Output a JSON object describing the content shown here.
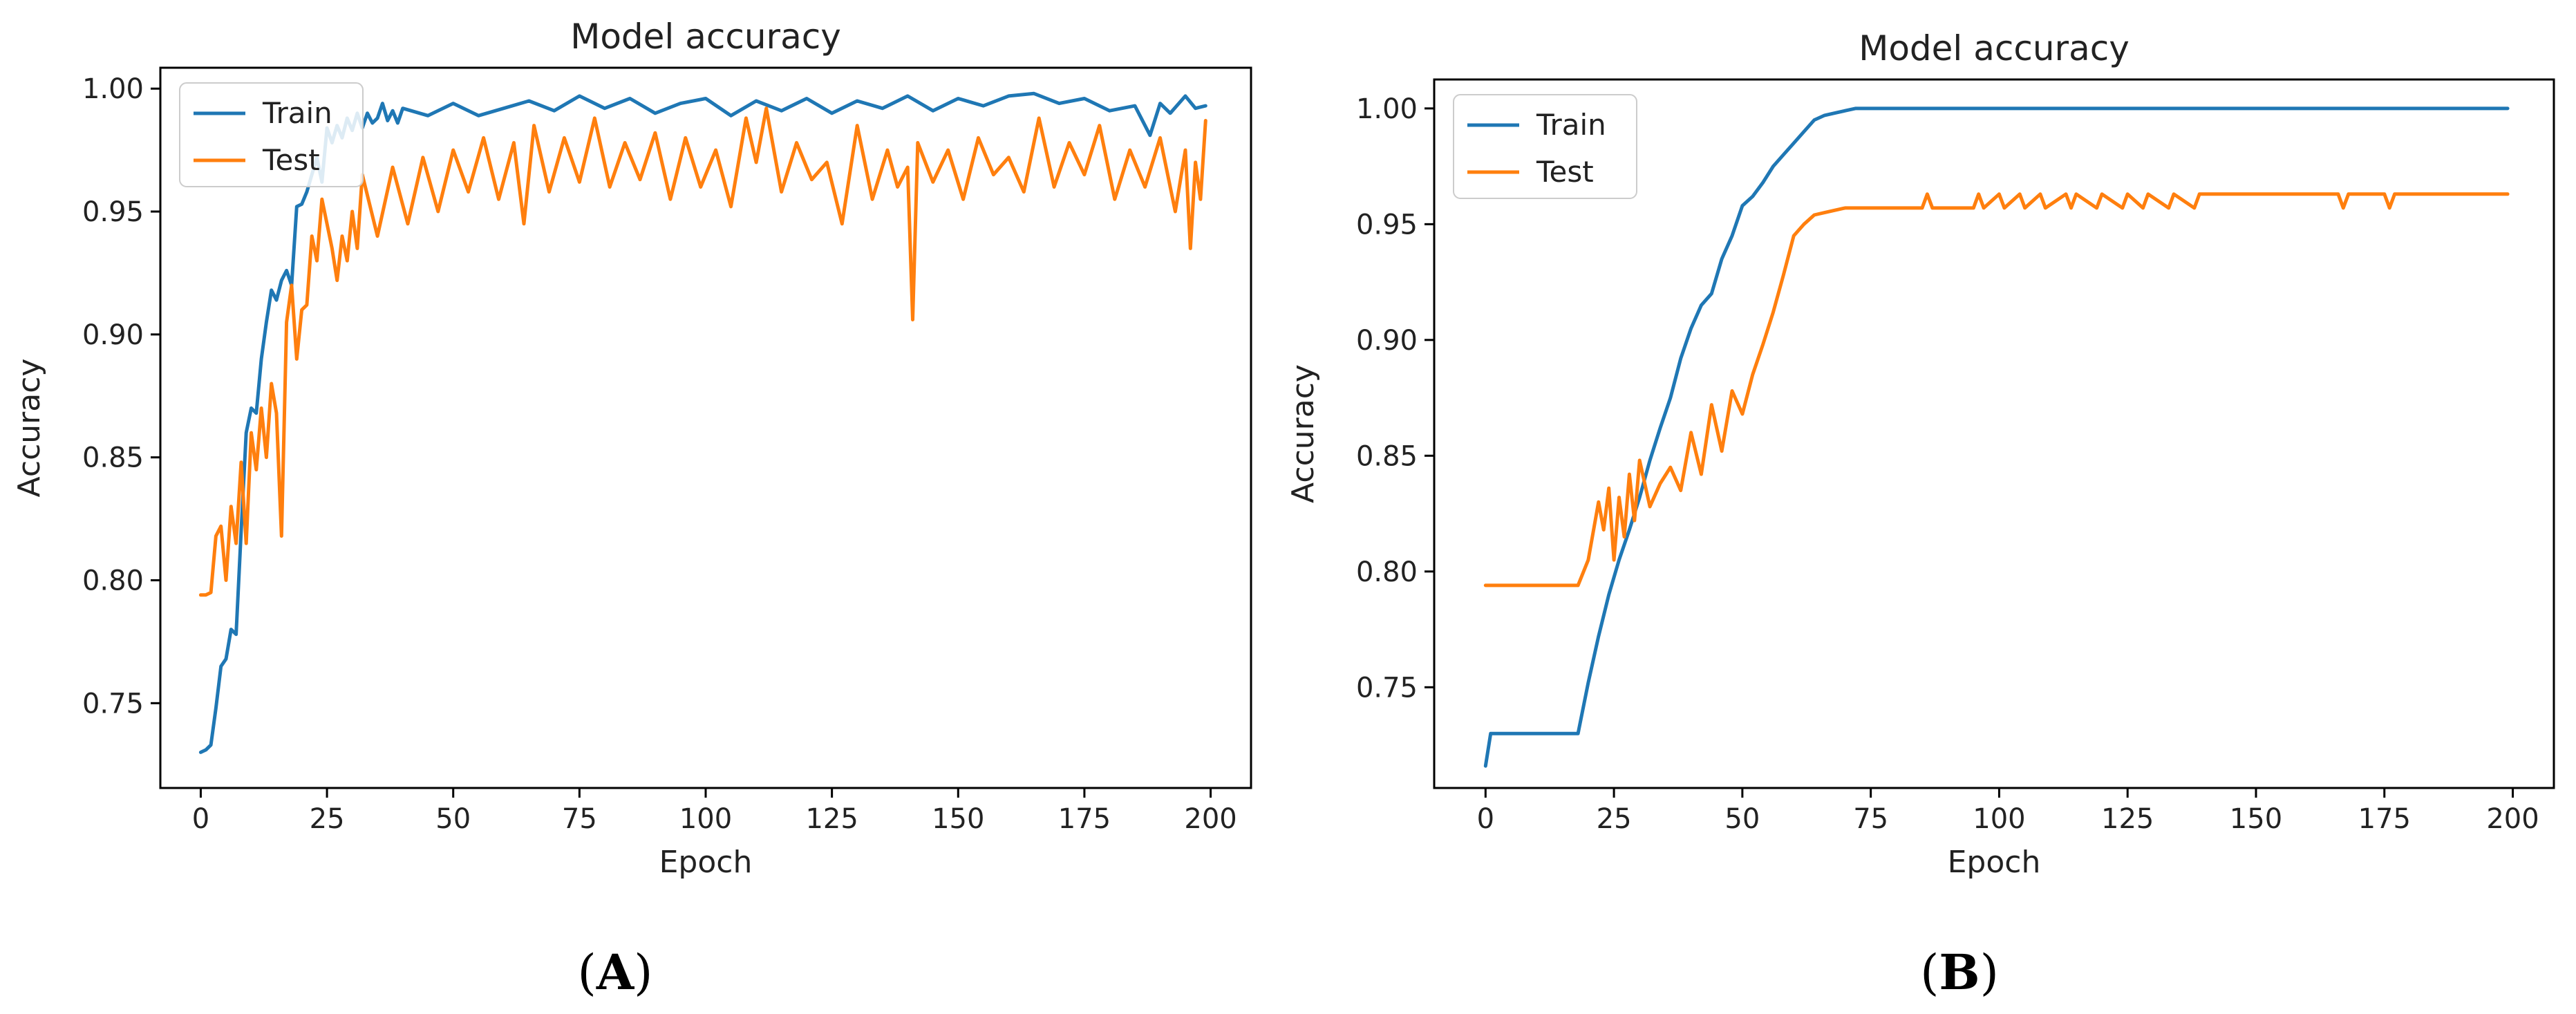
{
  "chart_data": [
    {
      "type": "line",
      "panel_label": "A",
      "title": "Model accuracy",
      "xlabel": "Epoch",
      "ylabel": "Accuracy",
      "xlim": [
        -8,
        208
      ],
      "ylim": [
        0.7155,
        1.0085
      ],
      "xticks": [
        0,
        25,
        50,
        75,
        100,
        125,
        150,
        175,
        200
      ],
      "yticks": [
        0.75,
        0.8,
        0.85,
        0.9,
        0.95,
        1.0
      ],
      "ytick_labels": [
        "0.75",
        "0.80",
        "0.85",
        "0.90",
        "0.95",
        "1.00"
      ],
      "legend_position": "upper-left",
      "series": [
        {
          "name": "Train",
          "color": "#1f77b4",
          "x": [
            0,
            1,
            2,
            3,
            4,
            5,
            6,
            7,
            8,
            9,
            10,
            11,
            12,
            13,
            14,
            15,
            16,
            17,
            18,
            19,
            20,
            21,
            22,
            23,
            24,
            25,
            26,
            27,
            28,
            29,
            30,
            31,
            32,
            33,
            34,
            35,
            36,
            37,
            38,
            39,
            40,
            45,
            50,
            55,
            60,
            65,
            70,
            75,
            80,
            85,
            90,
            95,
            100,
            105,
            110,
            115,
            120,
            125,
            130,
            135,
            140,
            145,
            150,
            155,
            160,
            165,
            170,
            175,
            180,
            185,
            188,
            190,
            192,
            195,
            197,
            199
          ],
          "values": [
            0.73,
            0.731,
            0.733,
            0.748,
            0.765,
            0.768,
            0.78,
            0.778,
            0.82,
            0.86,
            0.87,
            0.868,
            0.89,
            0.905,
            0.918,
            0.914,
            0.922,
            0.926,
            0.92,
            0.952,
            0.953,
            0.958,
            0.965,
            0.972,
            0.962,
            0.984,
            0.978,
            0.985,
            0.98,
            0.988,
            0.983,
            0.99,
            0.984,
            0.99,
            0.986,
            0.988,
            0.994,
            0.987,
            0.991,
            0.986,
            0.992,
            0.989,
            0.994,
            0.989,
            0.992,
            0.995,
            0.991,
            0.997,
            0.992,
            0.996,
            0.99,
            0.994,
            0.996,
            0.989,
            0.995,
            0.991,
            0.996,
            0.99,
            0.995,
            0.992,
            0.997,
            0.991,
            0.996,
            0.993,
            0.997,
            0.998,
            0.994,
            0.996,
            0.991,
            0.993,
            0.981,
            0.994,
            0.99,
            0.997,
            0.992,
            0.993
          ]
        },
        {
          "name": "Test",
          "color": "#ff7f0e",
          "x": [
            0,
            1,
            2,
            3,
            4,
            5,
            6,
            7,
            8,
            9,
            10,
            11,
            12,
            13,
            14,
            15,
            16,
            17,
            18,
            19,
            20,
            21,
            22,
            23,
            24,
            25,
            26,
            27,
            28,
            29,
            30,
            31,
            32,
            35,
            38,
            41,
            44,
            47,
            50,
            53,
            56,
            59,
            62,
            64,
            66,
            69,
            72,
            75,
            78,
            81,
            84,
            87,
            90,
            93,
            96,
            99,
            102,
            105,
            108,
            110,
            112,
            115,
            118,
            121,
            124,
            127,
            130,
            133,
            136,
            138,
            140,
            141,
            142,
            145,
            148,
            151,
            154,
            157,
            160,
            163,
            166,
            169,
            172,
            175,
            178,
            181,
            184,
            187,
            190,
            193,
            195,
            196,
            197,
            198,
            199
          ],
          "values": [
            0.794,
            0.794,
            0.795,
            0.818,
            0.822,
            0.8,
            0.83,
            0.815,
            0.848,
            0.815,
            0.86,
            0.845,
            0.87,
            0.85,
            0.88,
            0.868,
            0.818,
            0.905,
            0.92,
            0.89,
            0.91,
            0.912,
            0.94,
            0.93,
            0.955,
            0.945,
            0.935,
            0.922,
            0.94,
            0.93,
            0.95,
            0.935,
            0.965,
            0.94,
            0.968,
            0.945,
            0.972,
            0.95,
            0.975,
            0.958,
            0.98,
            0.955,
            0.978,
            0.945,
            0.985,
            0.958,
            0.98,
            0.962,
            0.988,
            0.96,
            0.978,
            0.963,
            0.982,
            0.955,
            0.98,
            0.96,
            0.975,
            0.952,
            0.988,
            0.97,
            0.992,
            0.958,
            0.978,
            0.963,
            0.97,
            0.945,
            0.985,
            0.955,
            0.975,
            0.96,
            0.968,
            0.906,
            0.978,
            0.962,
            0.975,
            0.955,
            0.98,
            0.965,
            0.972,
            0.958,
            0.988,
            0.96,
            0.978,
            0.965,
            0.985,
            0.955,
            0.975,
            0.96,
            0.98,
            0.95,
            0.975,
            0.935,
            0.97,
            0.955,
            0.987
          ]
        }
      ]
    },
    {
      "type": "line",
      "panel_label": "B",
      "title": "Model accuracy",
      "xlabel": "Epoch",
      "ylabel": "Accuracy",
      "xlim": [
        -10,
        208
      ],
      "ylim": [
        0.7065,
        1.0125
      ],
      "xticks": [
        0,
        25,
        50,
        75,
        100,
        125,
        150,
        175,
        200
      ],
      "yticks": [
        0.75,
        0.8,
        0.85,
        0.9,
        0.95,
        1.0
      ],
      "ytick_labels": [
        "0.75",
        "0.80",
        "0.85",
        "0.90",
        "0.95",
        "1.00"
      ],
      "legend_position": "upper-left",
      "series": [
        {
          "name": "Train",
          "color": "#1f77b4",
          "x": [
            0,
            1,
            2,
            5,
            10,
            15,
            18,
            20,
            22,
            24,
            26,
            28,
            30,
            32,
            34,
            36,
            38,
            40,
            42,
            44,
            46,
            48,
            50,
            52,
            54,
            56,
            58,
            60,
            62,
            64,
            66,
            68,
            70,
            72,
            75,
            100,
            150,
            199
          ],
          "values": [
            0.716,
            0.73,
            0.73,
            0.73,
            0.73,
            0.73,
            0.73,
            0.752,
            0.772,
            0.79,
            0.805,
            0.818,
            0.832,
            0.848,
            0.862,
            0.875,
            0.892,
            0.905,
            0.915,
            0.92,
            0.935,
            0.945,
            0.958,
            0.962,
            0.968,
            0.975,
            0.98,
            0.985,
            0.99,
            0.995,
            0.997,
            0.998,
            0.999,
            1.0,
            1.0,
            1.0,
            1.0,
            1.0
          ]
        },
        {
          "name": "Test",
          "color": "#ff7f0e",
          "x": [
            0,
            5,
            10,
            15,
            18,
            20,
            22,
            23,
            24,
            25,
            26,
            27,
            28,
            29,
            30,
            32,
            34,
            36,
            38,
            40,
            42,
            44,
            46,
            48,
            50,
            52,
            54,
            56,
            58,
            60,
            62,
            64,
            66,
            70,
            75,
            85,
            86,
            87,
            95,
            96,
            97,
            100,
            101,
            104,
            105,
            108,
            109,
            113,
            114,
            115,
            119,
            120,
            124,
            125,
            128,
            129,
            133,
            134,
            138,
            139,
            140,
            166,
            167,
            168,
            175,
            176,
            177,
            178,
            199
          ],
          "values": [
            0.794,
            0.794,
            0.794,
            0.794,
            0.794,
            0.805,
            0.83,
            0.818,
            0.836,
            0.805,
            0.832,
            0.815,
            0.842,
            0.822,
            0.848,
            0.828,
            0.838,
            0.845,
            0.835,
            0.86,
            0.842,
            0.872,
            0.852,
            0.878,
            0.868,
            0.885,
            0.898,
            0.912,
            0.928,
            0.945,
            0.95,
            0.954,
            0.955,
            0.957,
            0.957,
            0.957,
            0.963,
            0.957,
            0.957,
            0.963,
            0.957,
            0.963,
            0.957,
            0.963,
            0.957,
            0.963,
            0.957,
            0.963,
            0.957,
            0.963,
            0.957,
            0.963,
            0.957,
            0.963,
            0.957,
            0.963,
            0.957,
            0.963,
            0.957,
            0.963,
            0.963,
            0.963,
            0.957,
            0.963,
            0.963,
            0.957,
            0.963,
            0.963,
            0.963
          ]
        }
      ]
    }
  ]
}
